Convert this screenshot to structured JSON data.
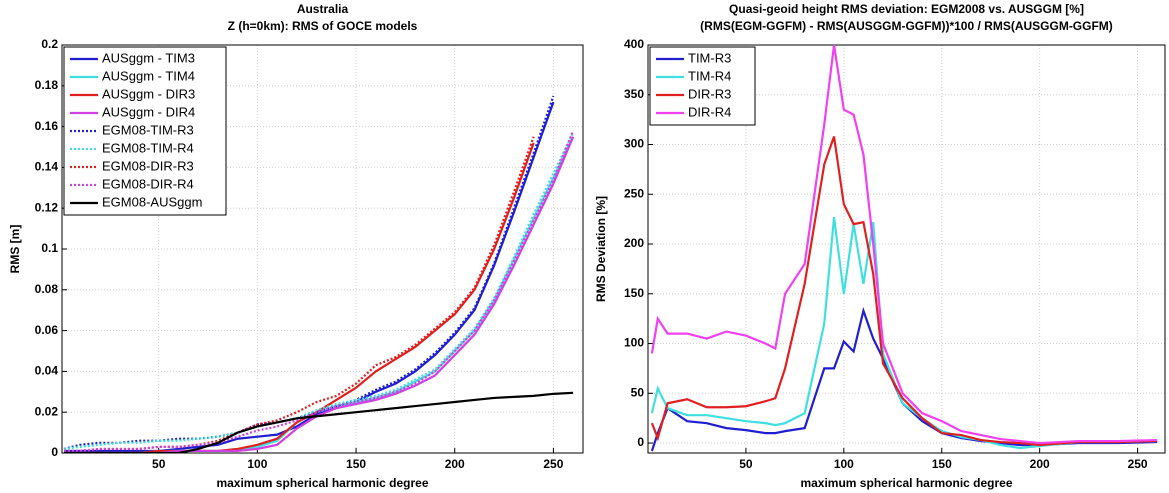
{
  "chart_data": [
    {
      "type": "line",
      "title": "Australia",
      "subtitle": "Z (h=0km): RMS of GOCE models",
      "x_label": "maximum spherical harmonic degree",
      "y_label": "RMS [m]",
      "xlim": [
        1,
        265
      ],
      "xticks": [
        50,
        100,
        150,
        200,
        250
      ],
      "ylim": [
        0,
        0.2
      ],
      "yticks": [
        0,
        0.02,
        0.04,
        0.06,
        0.08,
        0.1,
        0.12,
        0.14,
        0.16,
        0.18,
        0.2
      ],
      "grid": true,
      "legend": "upper left",
      "x": [
        2,
        10,
        20,
        30,
        40,
        50,
        60,
        70,
        80,
        90,
        100,
        110,
        120,
        130,
        140,
        150,
        160,
        170,
        180,
        190,
        200,
        210,
        220,
        230,
        240,
        250,
        260
      ],
      "series": [
        {
          "name": "AUSggm  - TIM3",
          "color": "#1f1fd0",
          "linestyle": "solid",
          "values": [
            0.001,
            0.001,
            0.001,
            0.001,
            0.001,
            0.001,
            0.002,
            0.003,
            0.004,
            0.007,
            0.008,
            0.009,
            0.013,
            0.019,
            0.022,
            0.025,
            0.03,
            0.034,
            0.04,
            0.048,
            0.058,
            0.07,
            0.092,
            0.118,
            0.145,
            0.172,
            null
          ]
        },
        {
          "name": "AUSggm  - TIM4",
          "color": "#3fdfe0",
          "linestyle": "solid",
          "values": [
            0,
            0,
            0,
            0,
            0,
            0.001,
            0.001,
            0.001,
            0.001,
            0.002,
            0.003,
            0.006,
            0.015,
            0.02,
            0.023,
            0.025,
            0.027,
            0.03,
            0.035,
            0.04,
            0.05,
            0.06,
            0.075,
            0.095,
            0.115,
            0.135,
            0.155
          ]
        },
        {
          "name": "AUSggm  - DIR3",
          "color": "#e02020",
          "linestyle": "solid",
          "values": [
            0,
            0,
            0,
            0,
            0,
            0.001,
            0.001,
            0.001,
            0.001,
            0.002,
            0.004,
            0.007,
            0.015,
            0.02,
            0.026,
            0.032,
            0.04,
            0.046,
            0.052,
            0.06,
            0.068,
            0.08,
            0.1,
            0.125,
            0.152,
            null,
            null
          ]
        },
        {
          "name": "AUSggm  - DIR4",
          "color": "#d040e0",
          "linestyle": "solid",
          "values": [
            0,
            0,
            0,
            0,
            0,
            0,
            0.001,
            0.001,
            0.001,
            0.001,
            0.002,
            0.004,
            0.012,
            0.018,
            0.022,
            0.024,
            0.026,
            0.029,
            0.033,
            0.038,
            0.048,
            0.058,
            0.073,
            0.092,
            0.112,
            0.132,
            0.155
          ]
        },
        {
          "name": "EGM08-TIM-R3",
          "color": "#1f1fd0",
          "linestyle": "dotted",
          "values": [
            0.002,
            0.004,
            0.005,
            0.005,
            0.006,
            0.006,
            0.007,
            0.007,
            0.008,
            0.01,
            0.014,
            0.015,
            0.017,
            0.02,
            0.023,
            0.026,
            0.031,
            0.035,
            0.041,
            0.049,
            0.059,
            0.071,
            0.093,
            0.12,
            0.147,
            0.175,
            null
          ]
        },
        {
          "name": "EGM08-TIM-R4",
          "color": "#3fdfe0",
          "linestyle": "dotted",
          "values": [
            0.002,
            0.003,
            0.004,
            0.005,
            0.005,
            0.006,
            0.006,
            0.007,
            0.008,
            0.01,
            0.013,
            0.015,
            0.017,
            0.021,
            0.024,
            0.026,
            0.028,
            0.031,
            0.036,
            0.041,
            0.051,
            0.061,
            0.076,
            0.096,
            0.117,
            0.137,
            0.157
          ]
        },
        {
          "name": "EGM08-DIR-R3",
          "color": "#e02020",
          "linestyle": "dotted",
          "values": [
            0.001,
            0.001,
            0.002,
            0.002,
            0.002,
            0.003,
            0.003,
            0.004,
            0.006,
            0.01,
            0.014,
            0.016,
            0.02,
            0.025,
            0.028,
            0.034,
            0.043,
            0.047,
            0.053,
            0.061,
            0.069,
            0.081,
            0.102,
            0.128,
            0.155,
            null,
            null
          ]
        },
        {
          "name": "EGM08-DIR-R4",
          "color": "#d040e0",
          "linestyle": "dotted",
          "values": [
            0.001,
            0.001,
            0.002,
            0.002,
            0.002,
            0.003,
            0.003,
            0.004,
            0.005,
            0.008,
            0.011,
            0.013,
            0.016,
            0.02,
            0.023,
            0.025,
            0.027,
            0.03,
            0.034,
            0.04,
            0.05,
            0.06,
            0.075,
            0.094,
            0.114,
            0.134,
            0.158
          ]
        },
        {
          "name": "EGM08-AUSggm",
          "color": "#000000",
          "linestyle": "solid",
          "values": [
            0,
            0,
            0,
            0,
            0,
            0,
            0,
            0.002,
            0.005,
            0.01,
            0.013,
            0.015,
            0.017,
            0.018,
            0.019,
            0.02,
            0.021,
            0.022,
            0.023,
            0.024,
            0.025,
            0.026,
            0.027,
            0.0275,
            0.028,
            0.029,
            0.0295
          ]
        }
      ]
    },
    {
      "type": "line",
      "title": "Quasi-geoid height RMS deviation: EGM2008 vs. AUSGGM [%]",
      "subtitle": "(RMS(EGM-GGFM) - RMS(AUSGGM-GGFM))*100 / RMS(AUSGGM-GGFM)",
      "x_label": "maximum spherical harmonic degree",
      "y_label": "RMS Deviation [%]",
      "xlim": [
        0,
        264
      ],
      "xticks": [
        50,
        100,
        150,
        200,
        250
      ],
      "ylim": [
        -10,
        400
      ],
      "yticks": [
        0,
        50,
        100,
        150,
        200,
        250,
        300,
        350,
        400
      ],
      "grid": true,
      "legend": "upper left",
      "x": [
        2,
        5,
        10,
        20,
        30,
        40,
        50,
        60,
        65,
        70,
        80,
        90,
        95,
        100,
        105,
        110,
        115,
        120,
        130,
        140,
        150,
        160,
        170,
        180,
        190,
        200,
        220,
        240,
        260
      ],
      "series": [
        {
          "name": "TIM-R3",
          "color": "#1f1fd0",
          "linestyle": "solid",
          "values": [
            -8,
            10,
            35,
            22,
            20,
            15,
            13,
            10,
            10,
            12,
            15,
            75,
            75,
            102,
            92,
            133,
            105,
            85,
            40,
            22,
            10,
            5,
            2,
            0,
            -2,
            -2,
            0,
            0,
            1
          ]
        },
        {
          "name": "TIM-R4",
          "color": "#3fdfe0",
          "linestyle": "solid",
          "values": [
            30,
            55,
            35,
            28,
            28,
            25,
            22,
            20,
            18,
            20,
            30,
            120,
            227,
            150,
            220,
            160,
            222,
            90,
            40,
            25,
            12,
            6,
            3,
            -2,
            -5,
            -3,
            1,
            1,
            2
          ]
        },
        {
          "name": "DIR-R3",
          "color": "#e02020",
          "linestyle": "solid",
          "values": [
            20,
            5,
            40,
            44,
            36,
            36,
            37,
            42,
            45,
            75,
            160,
            280,
            308,
            240,
            220,
            222,
            170,
            80,
            45,
            25,
            10,
            8,
            3,
            1,
            0,
            -2,
            1,
            1,
            2
          ]
        },
        {
          "name": "DIR-R4",
          "color": "#f040f0",
          "linestyle": "solid",
          "values": [
            90,
            125,
            110,
            110,
            105,
            112,
            108,
            100,
            95,
            150,
            180,
            320,
            400,
            335,
            330,
            290,
            200,
            100,
            50,
            30,
            22,
            12,
            8,
            4,
            2,
            0,
            2,
            2,
            3
          ]
        }
      ]
    }
  ]
}
